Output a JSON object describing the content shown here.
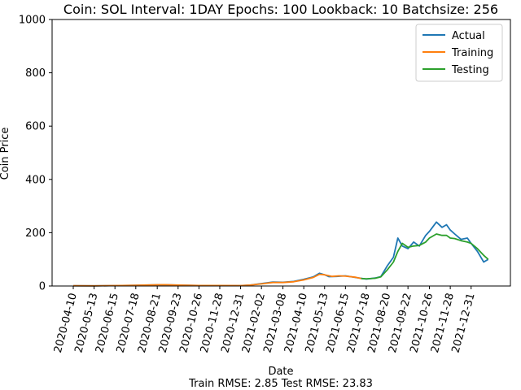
{
  "chart_data": {
    "type": "line",
    "title": "Coin: SOL Interval: 1DAY Epochs: 100 Lookback: 10 Batchsize: 256",
    "xlabel": "Date",
    "ylabel": "Coin Price",
    "footer": "Train RMSE: 2.85 Test RMSE: 23.83",
    "ylim": [
      0,
      1000
    ],
    "yticks": [
      0,
      200,
      400,
      600,
      800,
      1000
    ],
    "xticks": [
      "2020-04-10",
      "2020-05-13",
      "2020-06-15",
      "2020-07-18",
      "2020-08-21",
      "2020-09-23",
      "2020-10-26",
      "2020-11-28",
      "2020-12-31",
      "2021-02-02",
      "2021-03-08",
      "2021-04-10",
      "2021-05-13",
      "2021-06-15",
      "2021-07-18",
      "2021-08-20",
      "2021-09-22",
      "2021-10-26",
      "2021-11-28",
      "2021-12-31"
    ],
    "legend_position": "top-right",
    "series": [
      {
        "name": "Actual",
        "color": "#1f77b4",
        "x": [
          "2020-04-10",
          "2020-05-13",
          "2020-06-15",
          "2020-07-18",
          "2020-08-21",
          "2020-09-01",
          "2020-09-23",
          "2020-10-26",
          "2020-11-28",
          "2020-12-31",
          "2021-01-15",
          "2021-02-02",
          "2021-02-20",
          "2021-03-08",
          "2021-03-25",
          "2021-04-10",
          "2021-04-25",
          "2021-05-05",
          "2021-05-13",
          "2021-05-20",
          "2021-06-01",
          "2021-06-15",
          "2021-07-01",
          "2021-07-18",
          "2021-08-01",
          "2021-08-10",
          "2021-08-20",
          "2021-08-30",
          "2021-09-06",
          "2021-09-13",
          "2021-09-22",
          "2021-10-01",
          "2021-10-10",
          "2021-10-20",
          "2021-10-26",
          "2021-11-06",
          "2021-11-15",
          "2021-11-22",
          "2021-11-28",
          "2021-12-05",
          "2021-12-15",
          "2021-12-25",
          "2021-12-31",
          "2022-01-10",
          "2022-01-20",
          "2022-01-27"
        ],
        "values": [
          0.8,
          0.6,
          1.4,
          2.8,
          4.5,
          4.8,
          3.5,
          1.9,
          1.8,
          1.5,
          3.5,
          9,
          15,
          14,
          17,
          25,
          34,
          48,
          42,
          35,
          36,
          38,
          32,
          26,
          30,
          35,
          75,
          108,
          180,
          150,
          140,
          165,
          150,
          190,
          205,
          240,
          220,
          230,
          210,
          195,
          175,
          180,
          160,
          130,
          90,
          100
        ]
      },
      {
        "name": "Training",
        "color": "#ff7f0e",
        "x": [
          "2020-04-10",
          "2020-05-13",
          "2020-06-15",
          "2020-07-18",
          "2020-08-21",
          "2020-09-01",
          "2020-09-23",
          "2020-10-26",
          "2020-11-28",
          "2020-12-31",
          "2021-01-15",
          "2021-02-02",
          "2021-02-20",
          "2021-03-08",
          "2021-03-25",
          "2021-04-10",
          "2021-04-25",
          "2021-05-05",
          "2021-05-13",
          "2021-05-25",
          "2021-06-05",
          "2021-06-15",
          "2021-07-01",
          "2021-07-10"
        ],
        "values": [
          0.8,
          0.6,
          1.4,
          2.8,
          4.5,
          4.8,
          3.5,
          1.9,
          1.8,
          1.5,
          3.5,
          8,
          13,
          13,
          16,
          23,
          32,
          44,
          42,
          36,
          38,
          37,
          33,
          28
        ]
      },
      {
        "name": "Testing",
        "color": "#2ca02c",
        "x": [
          "2021-07-10",
          "2021-07-18",
          "2021-08-01",
          "2021-08-10",
          "2021-08-20",
          "2021-08-30",
          "2021-09-06",
          "2021-09-13",
          "2021-09-22",
          "2021-10-01",
          "2021-10-10",
          "2021-10-20",
          "2021-10-26",
          "2021-11-06",
          "2021-11-15",
          "2021-11-22",
          "2021-11-28",
          "2021-12-05",
          "2021-12-15",
          "2021-12-25",
          "2021-12-31",
          "2022-01-10",
          "2022-01-20",
          "2022-01-27"
        ],
        "values": [
          28,
          27,
          29,
          34,
          60,
          90,
          130,
          160,
          145,
          150,
          152,
          165,
          180,
          195,
          190,
          190,
          180,
          178,
          170,
          165,
          160,
          140,
          115,
          100
        ]
      }
    ]
  }
}
